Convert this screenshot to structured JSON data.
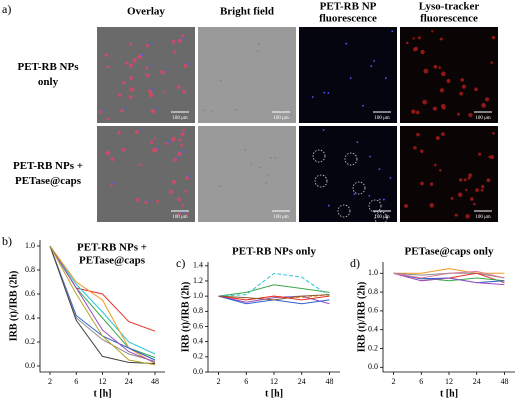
{
  "panel_a": {
    "label": "a)",
    "columns": [
      [
        "Overlay"
      ],
      [
        "Bright field"
      ],
      [
        "PET-RB NP",
        "fluorescence"
      ],
      [
        "Lyso-tracker",
        "fluorescence"
      ]
    ],
    "rows": [
      [
        "PET-RB NPs",
        "only"
      ],
      [
        "PET-RB NPs +",
        "PETase@caps"
      ]
    ],
    "scale_bars": [
      [
        "100 μm",
        "100 μm",
        "100 μm",
        "100 μm"
      ],
      [
        "100 μm",
        "100 μm",
        "100 μm",
        "100 μm"
      ]
    ]
  },
  "chart_data": [
    {
      "type": "line",
      "panel": "b)",
      "title": [
        "PET-RB NPs +",
        "PETase@caps"
      ],
      "x_label": "t [h]",
      "y_label": "IRB (t)/IRB (2h)",
      "categories": [
        "2",
        "6",
        "12",
        "24",
        "48"
      ],
      "ylim": [
        -0.05,
        1.05
      ],
      "yticks": [
        {
          "value": 0,
          "label": "0.0"
        },
        {
          "value": 0.2,
          "label": "0.2"
        },
        {
          "value": 0.4,
          "label": "0.4"
        },
        {
          "value": 0.6,
          "label": "0.6"
        },
        {
          "value": 0.8,
          "label": "0.8"
        },
        {
          "value": 1,
          "label": "1.0"
        }
      ],
      "series": [
        {
          "color": "#e8302a",
          "values": [
            1.0,
            0.65,
            0.6,
            0.37,
            0.29
          ]
        },
        {
          "color": "#2bc4d8",
          "values": [
            1.0,
            0.68,
            0.45,
            0.2,
            0.1
          ]
        },
        {
          "color": "#3aa84a",
          "values": [
            1.0,
            0.65,
            0.4,
            0.15,
            0.07
          ]
        },
        {
          "color": "#f09a20",
          "values": [
            1.0,
            0.7,
            0.55,
            0.15,
            0.02
          ]
        },
        {
          "color": "#2f5fd0",
          "values": [
            1.0,
            0.42,
            0.25,
            0.15,
            0.05
          ]
        },
        {
          "color": "#8c8c8c",
          "values": [
            1.0,
            0.4,
            0.22,
            0.1,
            0.04
          ]
        },
        {
          "color": "#404040",
          "values": [
            1.0,
            0.38,
            0.08,
            0.03,
            0.02
          ]
        },
        {
          "color": "#9a4fc0",
          "values": [
            1.0,
            0.65,
            0.3,
            0.12,
            0.03
          ]
        },
        {
          "color": "#b5a82a",
          "values": [
            1.0,
            0.6,
            0.25,
            0.05,
            0.01
          ]
        }
      ]
    },
    {
      "type": "line",
      "panel": "c)",
      "title": [
        "PET-RB NPs only"
      ],
      "x_label": "t [h]",
      "y_label": "IRB (t)/IRB (2h)",
      "categories": [
        "2",
        "6",
        "12",
        "24",
        "48"
      ],
      "ylim": [
        0,
        1.45
      ],
      "yticks": [
        {
          "value": 0,
          "label": "0.0"
        },
        {
          "value": 0.2,
          "label": "0.2"
        },
        {
          "value": 0.4,
          "label": "0.4"
        },
        {
          "value": 0.6,
          "label": "0.6"
        },
        {
          "value": 0.8,
          "label": "0.8"
        },
        {
          "value": 1,
          "label": "1.0"
        },
        {
          "value": 1.2,
          "label": "1.2"
        },
        {
          "value": 1.4,
          "label": "1.4"
        }
      ],
      "series": [
        {
          "color": "#3aa84a",
          "values": [
            1.0,
            1.05,
            1.15,
            1.1,
            1.05
          ]
        },
        {
          "color": "#2bc4d8",
          "dashed": true,
          "values": [
            1.0,
            1.02,
            1.3,
            1.25,
            1.0
          ]
        },
        {
          "color": "#f09a20",
          "dashed": true,
          "values": [
            1.0,
            0.95,
            1.0,
            0.98,
            1.02
          ]
        },
        {
          "color": "#9a4fc0",
          "values": [
            1.0,
            0.92,
            0.98,
            1.0,
            0.9
          ]
        },
        {
          "color": "#2f5fd0",
          "values": [
            1.0,
            0.9,
            0.95,
            0.9,
            0.95
          ]
        },
        {
          "color": "#e8302a",
          "values": [
            1.0,
            0.95,
            1.0,
            0.95,
            1.0
          ]
        },
        {
          "color": "#8b5a2b",
          "values": [
            1.0,
            0.98,
            0.95,
            1.0,
            1.02
          ]
        }
      ]
    },
    {
      "type": "line",
      "panel": "d)",
      "title": [
        "PETase@caps only"
      ],
      "x_label": "t [h]",
      "y_label": "IRB (t)/IRB (2h)",
      "categories": [
        "2",
        "6",
        "12",
        "24",
        "48"
      ],
      "ylim": [
        -0.05,
        1.12
      ],
      "yticks": [
        {
          "value": 0,
          "label": "0.0"
        },
        {
          "value": 0.2,
          "label": "0.2"
        },
        {
          "value": 0.4,
          "label": "0.4"
        },
        {
          "value": 0.6,
          "label": "0.6"
        },
        {
          "value": 0.8,
          "label": "0.8"
        },
        {
          "value": 1,
          "label": "1.0"
        }
      ],
      "series": [
        {
          "color": "#f09a20",
          "values": [
            1.0,
            1.0,
            1.05,
            1.0,
            1.0
          ]
        },
        {
          "color": "#8c8c8c",
          "values": [
            1.0,
            0.98,
            1.0,
            1.0,
            0.95
          ]
        },
        {
          "color": "#e8302a",
          "values": [
            1.0,
            0.92,
            0.95,
            1.0,
            0.9
          ]
        },
        {
          "color": "#3aa84a",
          "values": [
            1.0,
            0.95,
            0.92,
            0.95,
            0.92
          ]
        },
        {
          "color": "#2f5fd0",
          "values": [
            1.0,
            0.94,
            0.95,
            0.9,
            0.92
          ]
        },
        {
          "color": "#9a4fc0",
          "values": [
            1.0,
            0.92,
            0.95,
            0.9,
            0.88
          ]
        },
        {
          "color": "#e07aa0",
          "values": [
            1.0,
            0.95,
            1.0,
            1.02,
            0.95
          ]
        }
      ]
    }
  ]
}
